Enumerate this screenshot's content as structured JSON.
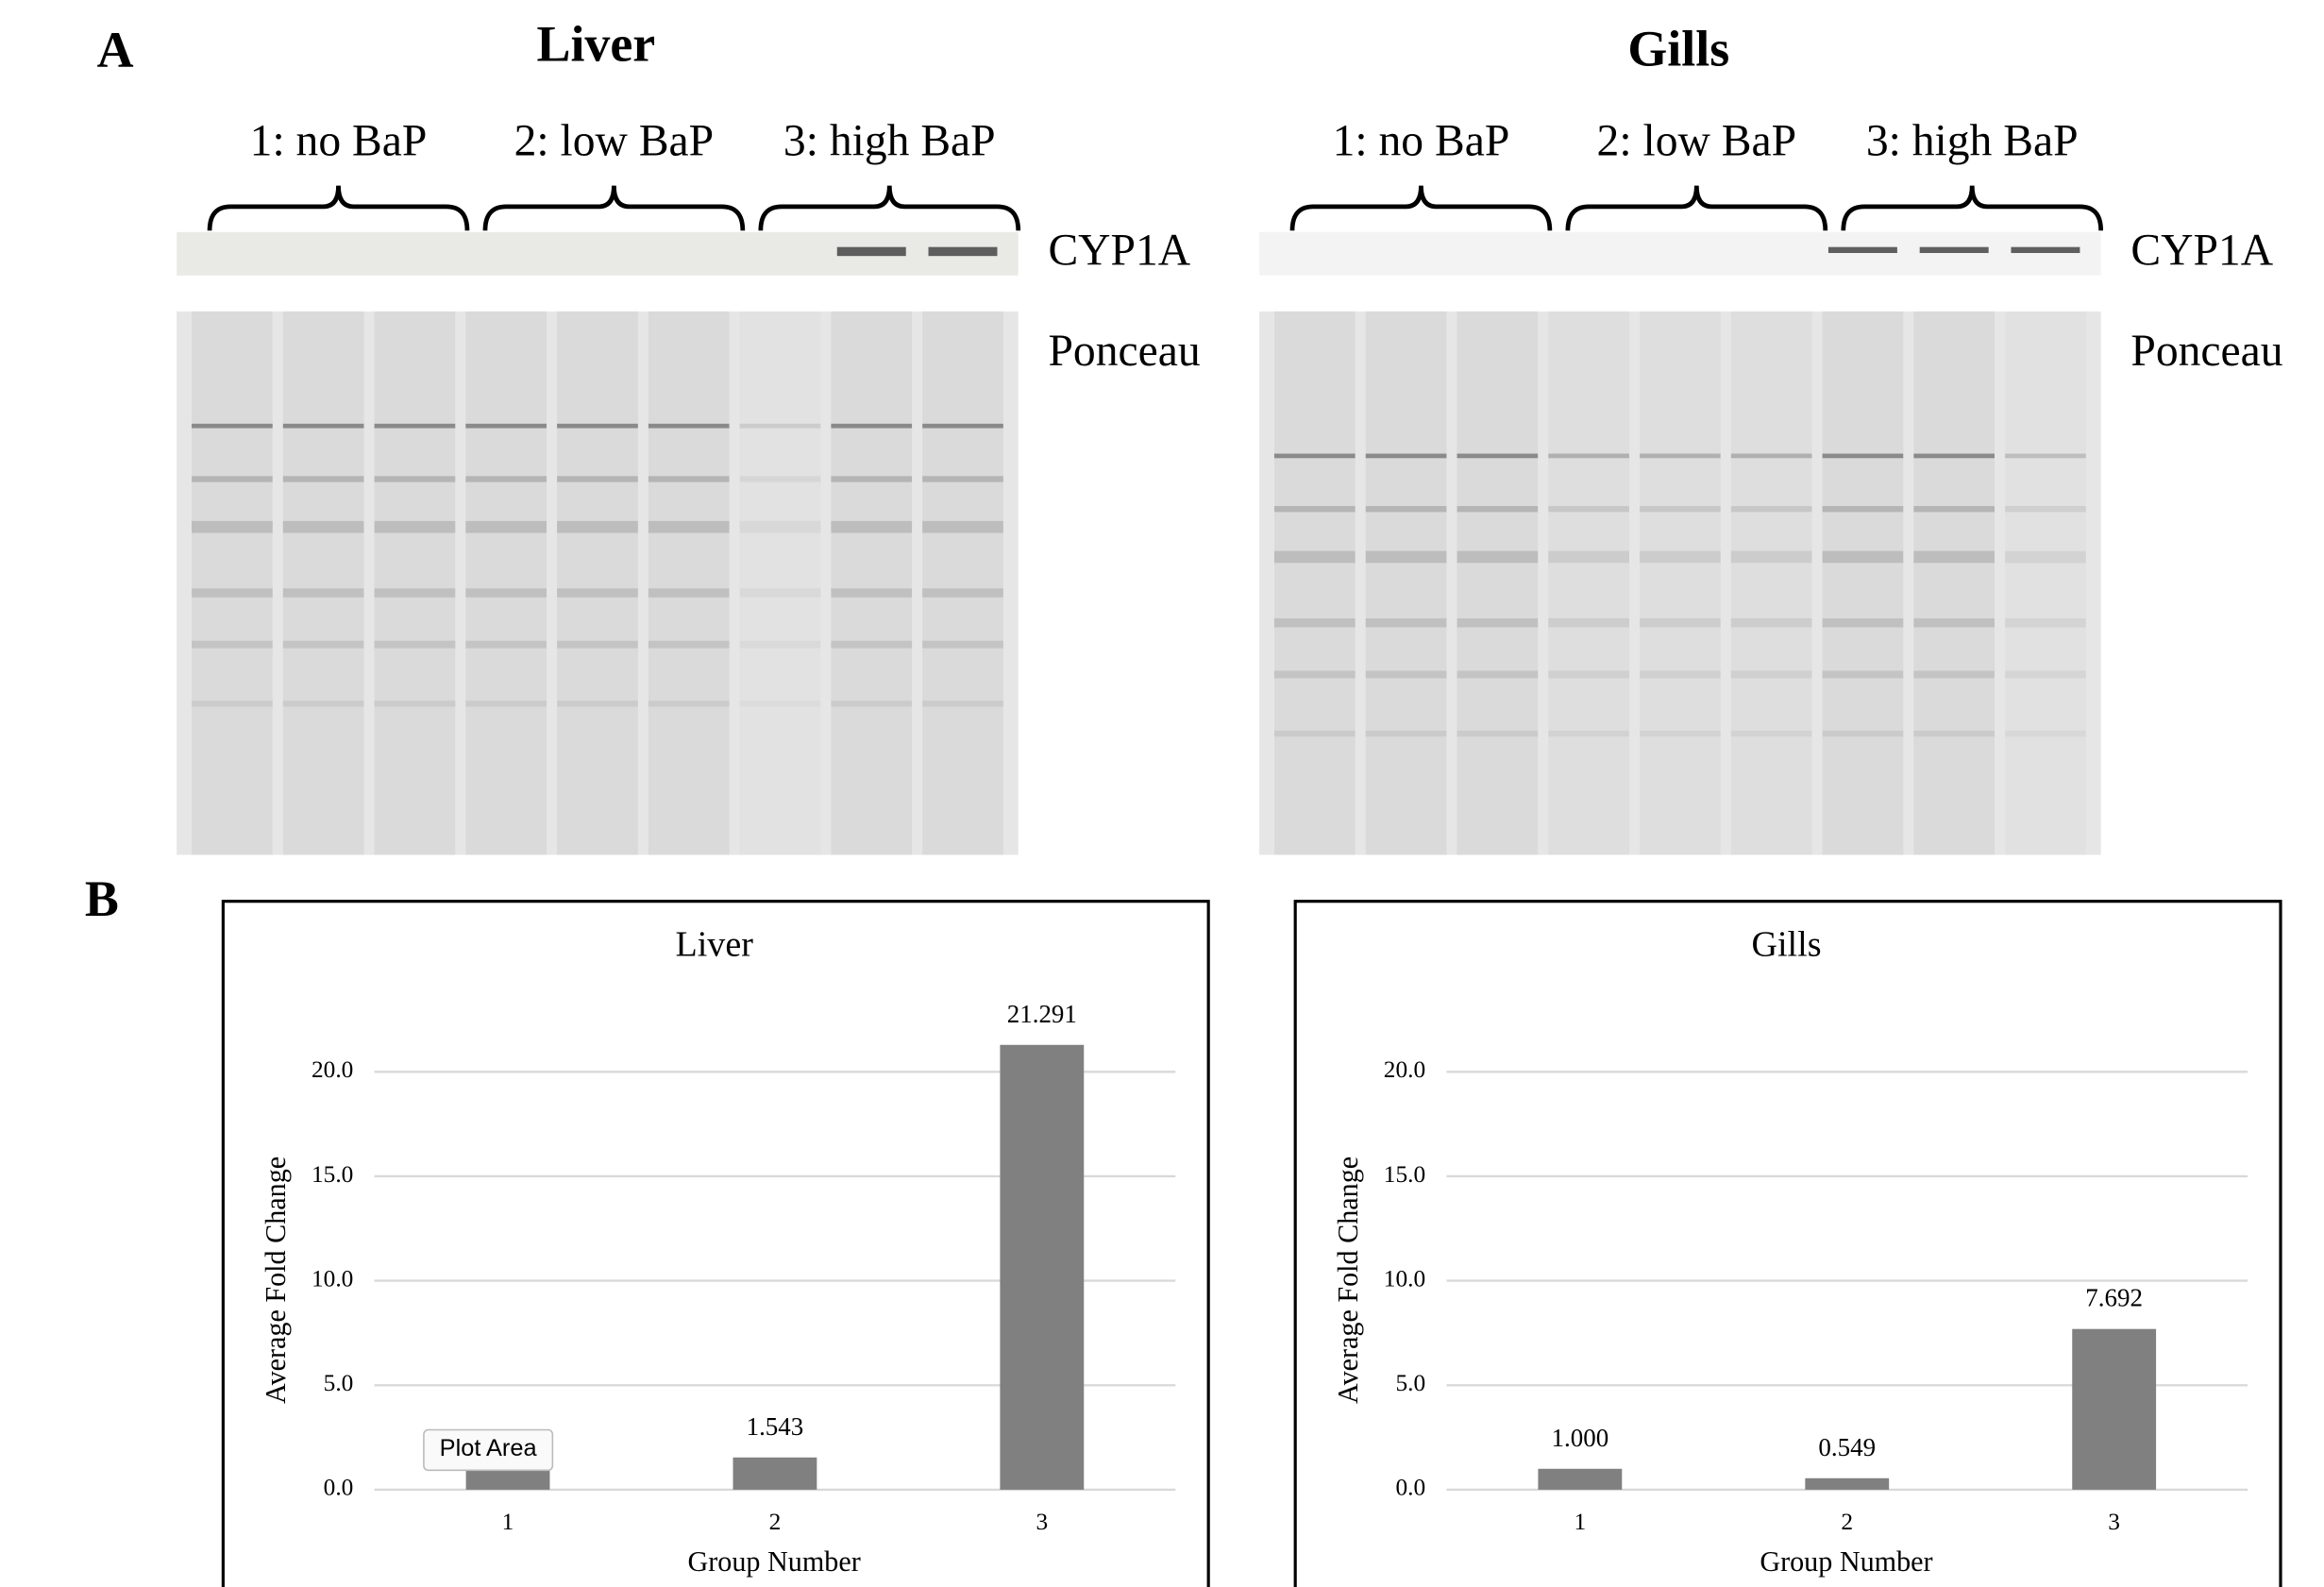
{
  "panel_labels": [
    "A",
    "B"
  ],
  "blots": [
    {
      "title": "Liver",
      "groups": [
        "1: no BaP",
        "2: low BaP",
        "3: high BaP"
      ],
      "labels": [
        "CYP1A",
        "Ponceau"
      ]
    },
    {
      "title": "Gills",
      "groups": [
        "1: no BaP",
        "2: low BaP",
        "3: high BaP"
      ],
      "labels": [
        "CYP1A",
        "Ponceau"
      ]
    }
  ],
  "tooltip": "Plot Area",
  "chart_data": [
    {
      "type": "bar",
      "title": "Liver",
      "x_label": "Group Number",
      "y_label": "Average Fold Change",
      "categories": [
        "1",
        "2",
        "3"
      ],
      "values": [
        1.0,
        1.543,
        21.291
      ],
      "value_labels": [
        null,
        "1.543",
        "21.291"
      ],
      "color": "#808080",
      "ylim": [
        0,
        22
      ],
      "yticks": [
        {
          "value": 0,
          "label": "0.0"
        },
        {
          "value": 5,
          "label": "5.0"
        },
        {
          "value": 10,
          "label": "10.0"
        },
        {
          "value": 15,
          "label": "15.0"
        },
        {
          "value": 20,
          "label": "20.0"
        }
      ],
      "grid": true
    },
    {
      "type": "bar",
      "title": "Gills",
      "x_label": "Group Number",
      "y_label": "Average Fold Change",
      "categories": [
        "1",
        "2",
        "3"
      ],
      "values": [
        1.0,
        0.549,
        7.692
      ],
      "value_labels": [
        "1.000",
        "0.549",
        "7.692"
      ],
      "color": "#808080",
      "ylim": [
        0,
        22
      ],
      "yticks": [
        {
          "value": 0,
          "label": "0.0"
        },
        {
          "value": 5,
          "label": "5.0"
        },
        {
          "value": 10,
          "label": "10.0"
        },
        {
          "value": 15,
          "label": "15.0"
        },
        {
          "value": 20,
          "label": "20.0"
        }
      ],
      "grid": true
    }
  ]
}
